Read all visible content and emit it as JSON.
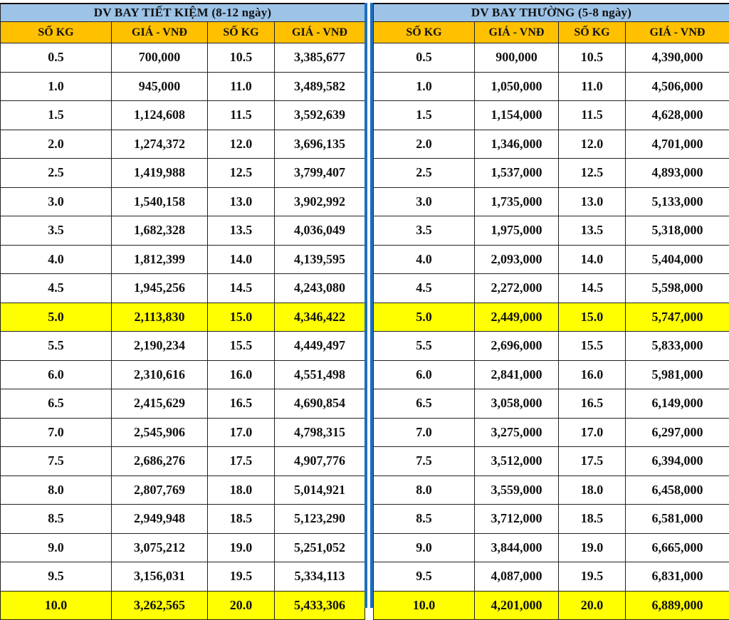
{
  "colors": {
    "title_bg": "#9dc3e6",
    "header_bg": "#ffc000",
    "highlight_bg": "#ffff00",
    "divider": "#1e6fc0"
  },
  "tables": [
    {
      "title": "DV BAY TIẾT KIỆM (8-12 ngày)",
      "headers": [
        "SỐ KG",
        "GIÁ - VNĐ",
        "SỐ KG",
        "GIÁ - VNĐ"
      ],
      "rows": [
        [
          "0.5",
          "700,000",
          "10.5",
          "3,385,677"
        ],
        [
          "1.0",
          "945,000",
          "11.0",
          "3,489,582"
        ],
        [
          "1.5",
          "1,124,608",
          "11.5",
          "3,592,639"
        ],
        [
          "2.0",
          "1,274,372",
          "12.0",
          "3,696,135"
        ],
        [
          "2.5",
          "1,419,988",
          "12.5",
          "3,799,407"
        ],
        [
          "3.0",
          "1,540,158",
          "13.0",
          "3,902,992"
        ],
        [
          "3.5",
          "1,682,328",
          "13.5",
          "4,036,049"
        ],
        [
          "4.0",
          "1,812,399",
          "14.0",
          "4,139,595"
        ],
        [
          "4.5",
          "1,945,256",
          "14.5",
          "4,243,080"
        ],
        [
          "5.0",
          "2,113,830",
          "15.0",
          "4,346,422"
        ],
        [
          "5.5",
          "2,190,234",
          "15.5",
          "4,449,497"
        ],
        [
          "6.0",
          "2,310,616",
          "16.0",
          "4,551,498"
        ],
        [
          "6.5",
          "2,415,629",
          "16.5",
          "4,690,854"
        ],
        [
          "7.0",
          "2,545,906",
          "17.0",
          "4,798,315"
        ],
        [
          "7.5",
          "2,686,276",
          "17.5",
          "4,907,776"
        ],
        [
          "8.0",
          "2,807,769",
          "18.0",
          "5,014,921"
        ],
        [
          "8.5",
          "2,949,948",
          "18.5",
          "5,123,290"
        ],
        [
          "9.0",
          "3,075,212",
          "19.0",
          "5,251,052"
        ],
        [
          "9.5",
          "3,156,031",
          "19.5",
          "5,334,113"
        ],
        [
          "10.0",
          "3,262,565",
          "20.0",
          "5,433,306"
        ]
      ]
    },
    {
      "title": "DV BAY THƯỜNG (5-8 ngày)",
      "headers": [
        "SỐ KG",
        "GIÁ - VNĐ",
        "SỐ KG",
        "GIÁ - VNĐ"
      ],
      "rows": [
        [
          "0.5",
          "900,000",
          "10.5",
          "4,390,000"
        ],
        [
          "1.0",
          "1,050,000",
          "11.0",
          "4,506,000"
        ],
        [
          "1.5",
          "1,154,000",
          "11.5",
          "4,628,000"
        ],
        [
          "2.0",
          "1,346,000",
          "12.0",
          "4,701,000"
        ],
        [
          "2.5",
          "1,537,000",
          "12.5",
          "4,893,000"
        ],
        [
          "3.0",
          "1,735,000",
          "13.0",
          "5,133,000"
        ],
        [
          "3.5",
          "1,975,000",
          "13.5",
          "5,318,000"
        ],
        [
          "4.0",
          "2,093,000",
          "14.0",
          "5,404,000"
        ],
        [
          "4.5",
          "2,272,000",
          "14.5",
          "5,598,000"
        ],
        [
          "5.0",
          "2,449,000",
          "15.0",
          "5,747,000"
        ],
        [
          "5.5",
          "2,696,000",
          "15.5",
          "5,833,000"
        ],
        [
          "6.0",
          "2,841,000",
          "16.0",
          "5,981,000"
        ],
        [
          "6.5",
          "3,058,000",
          "16.5",
          "6,149,000"
        ],
        [
          "7.0",
          "3,275,000",
          "17.0",
          "6,297,000"
        ],
        [
          "7.5",
          "3,512,000",
          "17.5",
          "6,394,000"
        ],
        [
          "8.0",
          "3,559,000",
          "18.0",
          "6,458,000"
        ],
        [
          "8.5",
          "3,712,000",
          "18.5",
          "6,581,000"
        ],
        [
          "9.0",
          "3,844,000",
          "19.0",
          "6,665,000"
        ],
        [
          "9.5",
          "4,087,000",
          "19.5",
          "6,831,000"
        ],
        [
          "10.0",
          "4,201,000",
          "20.0",
          "6,889,000"
        ]
      ]
    }
  ]
}
